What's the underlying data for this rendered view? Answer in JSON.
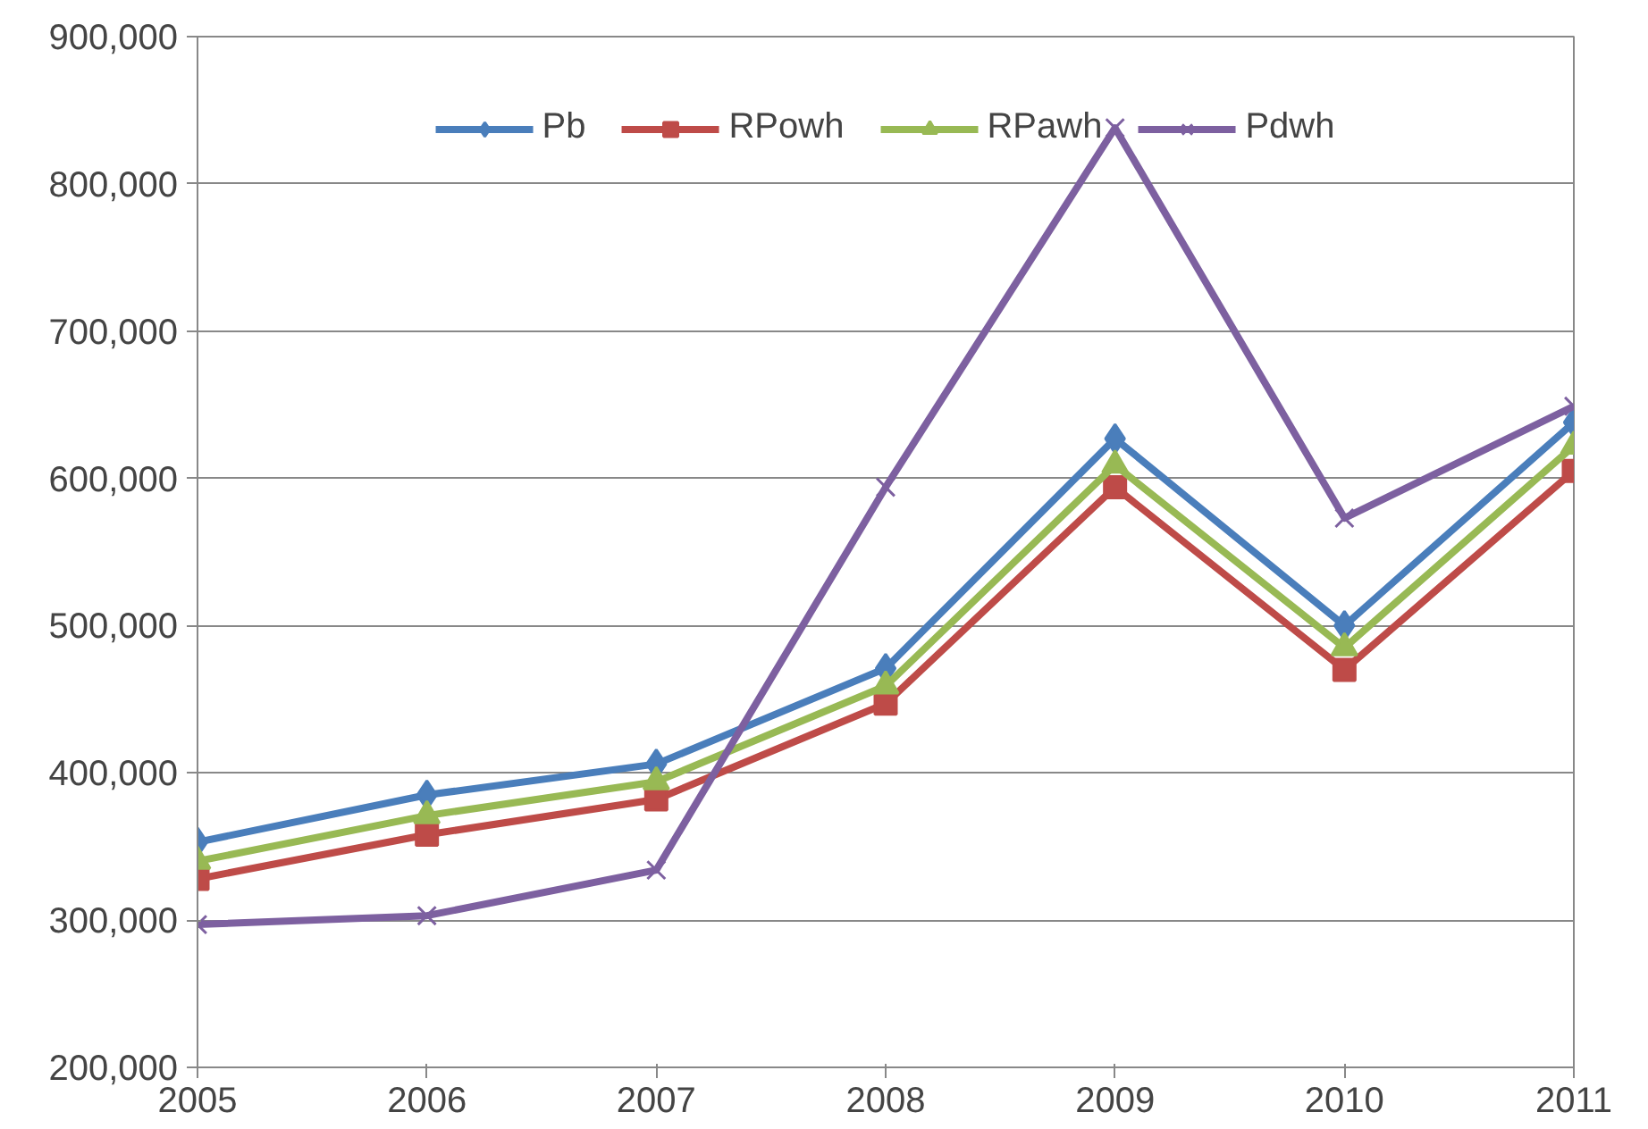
{
  "chart_data": {
    "type": "line",
    "x": [
      2005,
      2006,
      2007,
      2008,
      2009,
      2010,
      2011
    ],
    "xlim": [
      2005,
      2011
    ],
    "xticks": [
      2005,
      2006,
      2007,
      2008,
      2009,
      2010,
      2011
    ],
    "ylim": [
      200000,
      900000
    ],
    "yticks": [
      {
        "value": 200000,
        "label": "200,000"
      },
      {
        "value": 300000,
        "label": "300,000"
      },
      {
        "value": 400000,
        "label": "400,000"
      },
      {
        "value": 500000,
        "label": "500,000"
      },
      {
        "value": 600000,
        "label": "600,000"
      },
      {
        "value": 700000,
        "label": "700,000"
      },
      {
        "value": 800000,
        "label": "800,000"
      },
      {
        "value": 900000,
        "label": "900,000"
      }
    ],
    "grid": "y",
    "legend": "top",
    "line_style": "solid",
    "series": [
      {
        "name": "Pb",
        "color": "#4a7ebb",
        "marker": "diamond",
        "values": [
          353000,
          385000,
          406000,
          471000,
          627000,
          500000,
          638000
        ]
      },
      {
        "name": "RPowh",
        "color": "#be4b48",
        "marker": "square",
        "values": [
          328000,
          358000,
          382000,
          447000,
          594000,
          470000,
          605000
        ]
      },
      {
        "name": "RPawh",
        "color": "#98b954",
        "marker": "triangle",
        "values": [
          340000,
          371000,
          394000,
          459000,
          609000,
          485000,
          622000
        ]
      },
      {
        "name": "Pdwh",
        "color": "#7d60a0",
        "marker": "cross",
        "values": [
          297000,
          303000,
          334000,
          594000,
          838000,
          573000,
          649000
        ]
      }
    ]
  }
}
